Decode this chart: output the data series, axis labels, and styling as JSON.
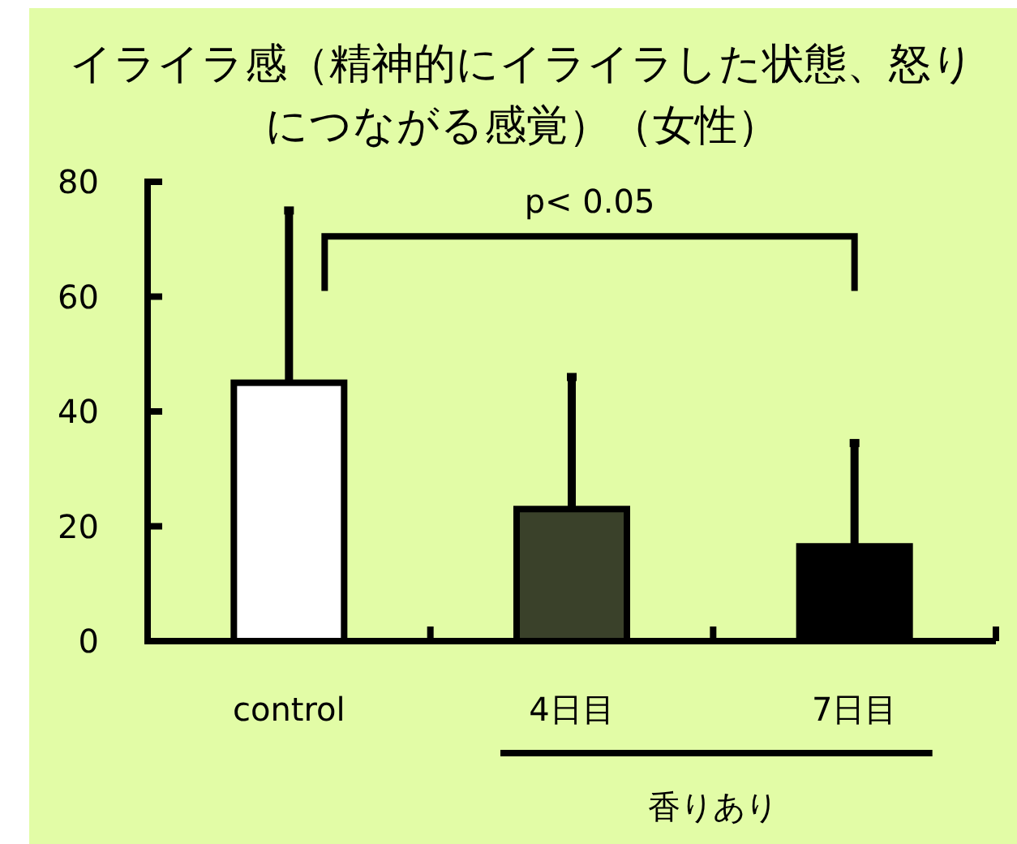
{
  "chart_data": {
    "type": "bar",
    "title": "イライラ感（精神的にイライラした状態、怒りにつながる感覚）（女性）",
    "categories": [
      "control",
      "4日目",
      "7日目"
    ],
    "values": [
      45,
      23,
      16.5
    ],
    "errors": [
      [
        45,
        75
      ],
      [
        23,
        46
      ],
      [
        16.5,
        34.5
      ]
    ],
    "colors": [
      "#ffffff",
      "#3a412a",
      "#000000"
    ],
    "ylim": [
      0,
      80
    ],
    "yticks": [
      0,
      20,
      40,
      60,
      80
    ],
    "grid": false,
    "annotations": [
      "p< 0.05",
      "香りあり"
    ]
  }
}
